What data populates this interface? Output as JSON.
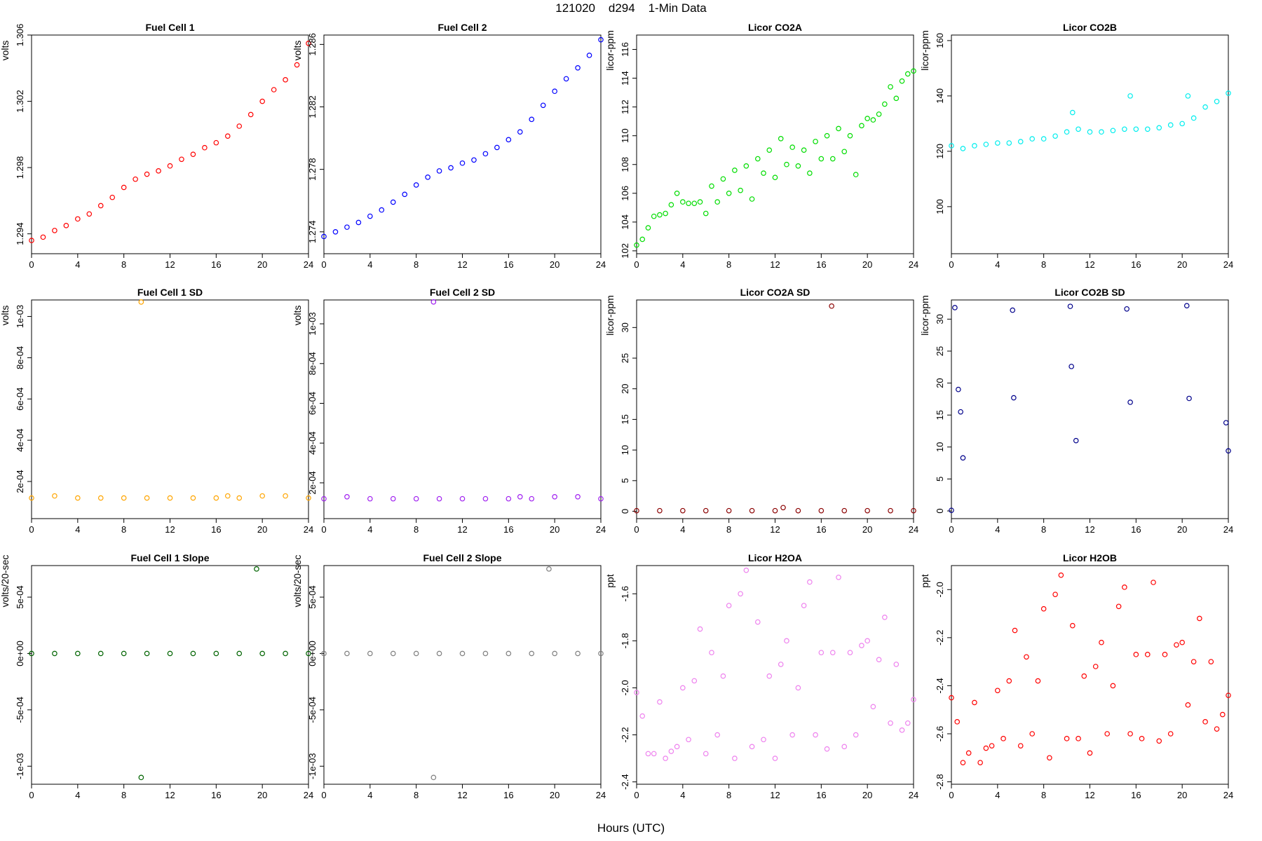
{
  "figure": {
    "title": "121020    d294    1-Min Data",
    "xlabel": "Hours (UTC)"
  },
  "chart_data": [
    {
      "type": "scatter",
      "title": "Fuel Cell 1",
      "ylabel": "volts",
      "color": "#ff0000",
      "xlim": [
        0,
        24
      ],
      "ylim": [
        1.2928,
        1.306
      ],
      "xticks": [
        "0",
        "4",
        "8",
        "12",
        "16",
        "20",
        "24"
      ],
      "yticks": [
        "1.294",
        "1.298",
        "1.302",
        "1.306"
      ],
      "x": [
        0,
        1,
        2,
        3,
        4,
        5,
        6,
        7,
        8,
        9,
        10,
        11,
        12,
        13,
        14,
        15,
        16,
        17,
        18,
        19,
        20,
        21,
        22,
        23,
        24
      ],
      "y": [
        1.2936,
        1.2938,
        1.2942,
        1.2945,
        1.2949,
        1.2952,
        1.2957,
        1.2962,
        1.2968,
        1.2973,
        1.2976,
        1.2978,
        1.2981,
        1.2985,
        1.2988,
        1.2992,
        1.2995,
        1.2999,
        1.3005,
        1.3012,
        1.302,
        1.3027,
        1.3033,
        1.3042,
        1.3055
      ]
    },
    {
      "type": "scatter",
      "title": "Fuel Cell 2",
      "ylabel": "volts",
      "color": "#0000ff",
      "xlim": [
        0,
        24
      ],
      "ylim": [
        1.2726,
        1.2866
      ],
      "xticks": [
        "0",
        "4",
        "8",
        "12",
        "16",
        "20",
        "24"
      ],
      "yticks": [
        "1.274",
        "1.278",
        "1.282",
        "1.286"
      ],
      "x": [
        0,
        1,
        2,
        3,
        4,
        5,
        6,
        7,
        8,
        9,
        10,
        11,
        12,
        13,
        14,
        15,
        16,
        17,
        18,
        19,
        20,
        21,
        22,
        23,
        24
      ],
      "y": [
        1.2737,
        1.274,
        1.2743,
        1.2746,
        1.275,
        1.2754,
        1.2759,
        1.2764,
        1.277,
        1.2775,
        1.2779,
        1.2781,
        1.2784,
        1.2786,
        1.279,
        1.2794,
        1.2799,
        1.2804,
        1.2812,
        1.2821,
        1.283,
        1.2838,
        1.2845,
        1.2853,
        1.2863
      ]
    },
    {
      "type": "scatter",
      "title": "Licor CO2A",
      "ylabel": "licor-ppm",
      "color": "#00dd00",
      "xlim": [
        0,
        24
      ],
      "ylim": [
        101.8,
        117
      ],
      "xticks": [
        "0",
        "4",
        "8",
        "12",
        "16",
        "20",
        "24"
      ],
      "yticks": [
        "102",
        "104",
        "106",
        "108",
        "110",
        "112",
        "114",
        "116"
      ],
      "x": [
        0,
        0.5,
        1,
        1.5,
        2,
        2.5,
        3,
        3.5,
        4,
        4.5,
        5,
        5.5,
        6,
        6.5,
        7,
        7.5,
        8,
        8.5,
        9,
        9.5,
        10,
        10.5,
        11,
        11.5,
        12,
        12.5,
        13,
        13.5,
        14,
        14.5,
        15,
        15.5,
        16,
        16.5,
        17,
        17.5,
        18,
        18.5,
        19,
        19.5,
        20,
        20.5,
        21,
        21.5,
        22,
        22.5,
        23,
        23.5,
        24
      ],
      "y": [
        102.4,
        102.8,
        103.6,
        104.4,
        104.5,
        104.6,
        105.2,
        106,
        105.4,
        105.3,
        105.3,
        105.4,
        104.6,
        106.5,
        105.4,
        107,
        106,
        107.6,
        106.2,
        107.9,
        105.6,
        108.4,
        107.4,
        109,
        107.1,
        109.8,
        108,
        109.2,
        107.9,
        109,
        107.4,
        109.6,
        108.4,
        110,
        108.4,
        110.5,
        108.9,
        110,
        107.3,
        110.7,
        111.2,
        111.1,
        111.5,
        112.2,
        113.4,
        112.6,
        113.8,
        114.3,
        114.5
      ]
    },
    {
      "type": "scatter",
      "title": "Licor CO2B",
      "ylabel": "licor-ppm",
      "color": "#00eeee",
      "xlim": [
        0,
        24
      ],
      "ylim": [
        83,
        162
      ],
      "xticks": [
        "0",
        "4",
        "8",
        "12",
        "16",
        "20",
        "24"
      ],
      "yticks": [
        "100",
        "120",
        "140",
        "160"
      ],
      "x": [
        0,
        1,
        2,
        3,
        4,
        5,
        6,
        7,
        8,
        9,
        10,
        10.5,
        11,
        12,
        13,
        14,
        15,
        15.5,
        16,
        17,
        18,
        19,
        20,
        20.5,
        21,
        22,
        23,
        24
      ],
      "y": [
        122,
        121,
        122,
        122.5,
        123,
        123,
        123.5,
        124.5,
        124.5,
        125.5,
        127,
        134,
        128,
        127,
        127,
        127.5,
        128,
        140,
        128,
        128,
        128.5,
        129.5,
        130,
        140,
        132,
        136,
        138,
        141
      ]
    },
    {
      "type": "scatter",
      "title": "Fuel Cell 1 SD",
      "ylabel": "volts",
      "color": "#ffa500",
      "xlim": [
        0,
        24
      ],
      "ylim": [
        2e-05,
        0.00108
      ],
      "xticks": [
        "0",
        "4",
        "8",
        "12",
        "16",
        "20",
        "24"
      ],
      "yticks": [
        "2e-04",
        "4e-04",
        "6e-04",
        "8e-04",
        "1e-03"
      ],
      "x": [
        0,
        2,
        4,
        6,
        8,
        9.5,
        10,
        12,
        14,
        16,
        17,
        18,
        20,
        22,
        24
      ],
      "y": [
        0.00012,
        0.00013,
        0.00012,
        0.00012,
        0.00012,
        0.00107,
        0.00012,
        0.00012,
        0.00012,
        0.00012,
        0.00013,
        0.00012,
        0.00013,
        0.00013,
        0.00012
      ]
    },
    {
      "type": "scatter",
      "title": "Fuel Cell 2 SD",
      "ylabel": "volts",
      "color": "#a020f0",
      "xlim": [
        0,
        24
      ],
      "ylim": [
        2e-05,
        0.00112
      ],
      "xticks": [
        "0",
        "4",
        "8",
        "12",
        "16",
        "20",
        "24"
      ],
      "yticks": [
        "2e-04",
        "4e-04",
        "6e-04",
        "8e-04",
        "1e-03"
      ],
      "x": [
        0,
        2,
        4,
        6,
        8,
        9.5,
        10,
        12,
        14,
        16,
        17,
        18,
        20,
        22,
        24
      ],
      "y": [
        0.00012,
        0.00013,
        0.00012,
        0.00012,
        0.00012,
        0.00111,
        0.00012,
        0.00012,
        0.00012,
        0.00012,
        0.00013,
        0.00012,
        0.00013,
        0.00013,
        0.00012
      ]
    },
    {
      "type": "scatter",
      "title": "Licor CO2A SD",
      "ylabel": "licor-ppm",
      "color": "#8b0000",
      "xlim": [
        0,
        24
      ],
      "ylim": [
        -1.2,
        34.5
      ],
      "xticks": [
        "0",
        "4",
        "8",
        "12",
        "16",
        "20",
        "24"
      ],
      "yticks": [
        "0",
        "5",
        "10",
        "15",
        "20",
        "25",
        "30"
      ],
      "x": [
        0,
        2,
        4,
        6,
        8,
        10,
        12,
        12.7,
        14,
        16,
        16.9,
        18,
        20,
        22,
        24
      ],
      "y": [
        0.1,
        0.1,
        0.1,
        0.1,
        0.1,
        0.1,
        0.1,
        0.6,
        0.1,
        0.1,
        33.5,
        0.1,
        0.1,
        0.1,
        0.1
      ]
    },
    {
      "type": "scatter",
      "title": "Licor CO2B SD",
      "ylabel": "licor-ppm",
      "color": "#00008b",
      "xlim": [
        0,
        24
      ],
      "ylim": [
        -1.2,
        33
      ],
      "xticks": [
        "0",
        "4",
        "8",
        "12",
        "16",
        "20",
        "24"
      ],
      "yticks": [
        "0",
        "5",
        "10",
        "15",
        "20",
        "25",
        "30"
      ],
      "x": [
        0,
        0.3,
        0.6,
        0.8,
        1,
        5.3,
        5.4,
        10.3,
        10.4,
        10.8,
        15.2,
        15.5,
        20.4,
        20.6,
        23.8,
        24
      ],
      "y": [
        0.1,
        31.8,
        19,
        15.5,
        8.3,
        31.4,
        17.7,
        32,
        22.6,
        11,
        31.6,
        17,
        32.1,
        17.6,
        13.8,
        9.4
      ]
    },
    {
      "type": "scatter",
      "title": "Fuel Cell 1 Slope",
      "ylabel": "volts/20-sec",
      "color": "#006400",
      "xlim": [
        0,
        24
      ],
      "ylim": [
        -0.00116,
        0.00078
      ],
      "xticks": [
        "0",
        "4",
        "8",
        "12",
        "16",
        "20",
        "24"
      ],
      "yticks": [
        "-1e-03",
        "-5e-04",
        "0e+00",
        "5e-04"
      ],
      "x": [
        0,
        2,
        4,
        6,
        8,
        9.5,
        10,
        12,
        14,
        16,
        18,
        19.5,
        20,
        22,
        24
      ],
      "y": [
        0,
        0,
        0,
        0,
        0,
        -0.0011,
        0,
        0,
        0,
        0,
        0,
        0.00075,
        0,
        0,
        0
      ]
    },
    {
      "type": "scatter",
      "title": "Fuel Cell 2 Slope",
      "ylabel": "volts/20-sec",
      "color": "#808080",
      "xlim": [
        0,
        24
      ],
      "ylim": [
        -0.00116,
        0.00078
      ],
      "xticks": [
        "0",
        "4",
        "8",
        "12",
        "16",
        "20",
        "24"
      ],
      "yticks": [
        "-1e-03",
        "-5e-04",
        "0e+00",
        "5e-04"
      ],
      "x": [
        0,
        2,
        4,
        6,
        8,
        9.5,
        10,
        12,
        14,
        16,
        18,
        19.5,
        20,
        22,
        24
      ],
      "y": [
        0,
        0,
        0,
        0,
        0,
        -0.0011,
        0,
        0,
        0,
        0,
        0,
        0.00075,
        0,
        0,
        0
      ]
    },
    {
      "type": "scatter",
      "title": "Licor H2OA",
      "ylabel": "ppt",
      "color": "#ee82ee",
      "xlim": [
        0,
        24
      ],
      "ylim": [
        -2.41,
        -1.48
      ],
      "xticks": [
        "0",
        "4",
        "8",
        "12",
        "16",
        "20",
        "24"
      ],
      "yticks": [
        "-2.4",
        "-2.2",
        "-2.0",
        "-1.8",
        "-1.6"
      ],
      "x": [
        0,
        0.5,
        1,
        1.5,
        2,
        2.5,
        3,
        3.5,
        4,
        4.5,
        5,
        5.5,
        6,
        6.5,
        7,
        7.5,
        8,
        8.5,
        9,
        9.5,
        10,
        10.5,
        11,
        11.5,
        12,
        12.5,
        13,
        13.5,
        14,
        14.5,
        15,
        15.5,
        16,
        16.5,
        17,
        17.5,
        18,
        18.5,
        19,
        19.5,
        20,
        20.5,
        21,
        21.5,
        22,
        22.5,
        23,
        23.5,
        24
      ],
      "y": [
        -2.02,
        -2.12,
        -2.28,
        -2.28,
        -2.06,
        -2.3,
        -2.27,
        -2.25,
        -2.0,
        -2.22,
        -1.97,
        -1.75,
        -2.28,
        -1.85,
        -2.2,
        -1.95,
        -1.65,
        -2.3,
        -1.6,
        -1.5,
        -2.25,
        -1.72,
        -2.22,
        -1.95,
        -2.3,
        -1.9,
        -1.8,
        -2.2,
        -2.0,
        -1.65,
        -1.55,
        -2.2,
        -1.85,
        -2.26,
        -1.85,
        -1.53,
        -2.25,
        -1.85,
        -2.2,
        -1.82,
        -1.8,
        -2.08,
        -1.88,
        -1.7,
        -2.15,
        -1.9,
        -2.18,
        -2.15,
        -2.05
      ]
    },
    {
      "type": "scatter",
      "title": "Licor H2OB",
      "ylabel": "ppt",
      "color": "#ff0000",
      "xlim": [
        0,
        24
      ],
      "ylim": [
        -2.81,
        -1.9
      ],
      "xticks": [
        "0",
        "4",
        "8",
        "12",
        "16",
        "20",
        "24"
      ],
      "yticks": [
        "-2.8",
        "-2.6",
        "-2.4",
        "-2.2",
        "-2.0"
      ],
      "x": [
        0,
        0.5,
        1,
        1.5,
        2,
        2.5,
        3,
        3.5,
        4,
        4.5,
        5,
        5.5,
        6,
        6.5,
        7,
        7.5,
        8,
        8.5,
        9,
        9.5,
        10,
        10.5,
        11,
        11.5,
        12,
        12.5,
        13,
        13.5,
        14,
        14.5,
        15,
        15.5,
        16,
        16.5,
        17,
        17.5,
        18,
        18.5,
        19,
        19.5,
        20,
        20.5,
        21,
        21.5,
        22,
        22.5,
        23,
        23.5,
        24
      ],
      "y": [
        -2.45,
        -2.55,
        -2.72,
        -2.68,
        -2.47,
        -2.72,
        -2.66,
        -2.65,
        -2.42,
        -2.62,
        -2.38,
        -2.17,
        -2.65,
        -2.28,
        -2.6,
        -2.38,
        -2.08,
        -2.7,
        -2.02,
        -1.94,
        -2.62,
        -2.15,
        -2.62,
        -2.36,
        -2.68,
        -2.32,
        -2.22,
        -2.6,
        -2.4,
        -2.07,
        -1.99,
        -2.6,
        -2.27,
        -2.62,
        -2.27,
        -1.97,
        -2.63,
        -2.27,
        -2.6,
        -2.23,
        -2.22,
        -2.48,
        -2.3,
        -2.12,
        -2.55,
        -2.3,
        -2.58,
        -2.52,
        -2.44
      ]
    }
  ]
}
